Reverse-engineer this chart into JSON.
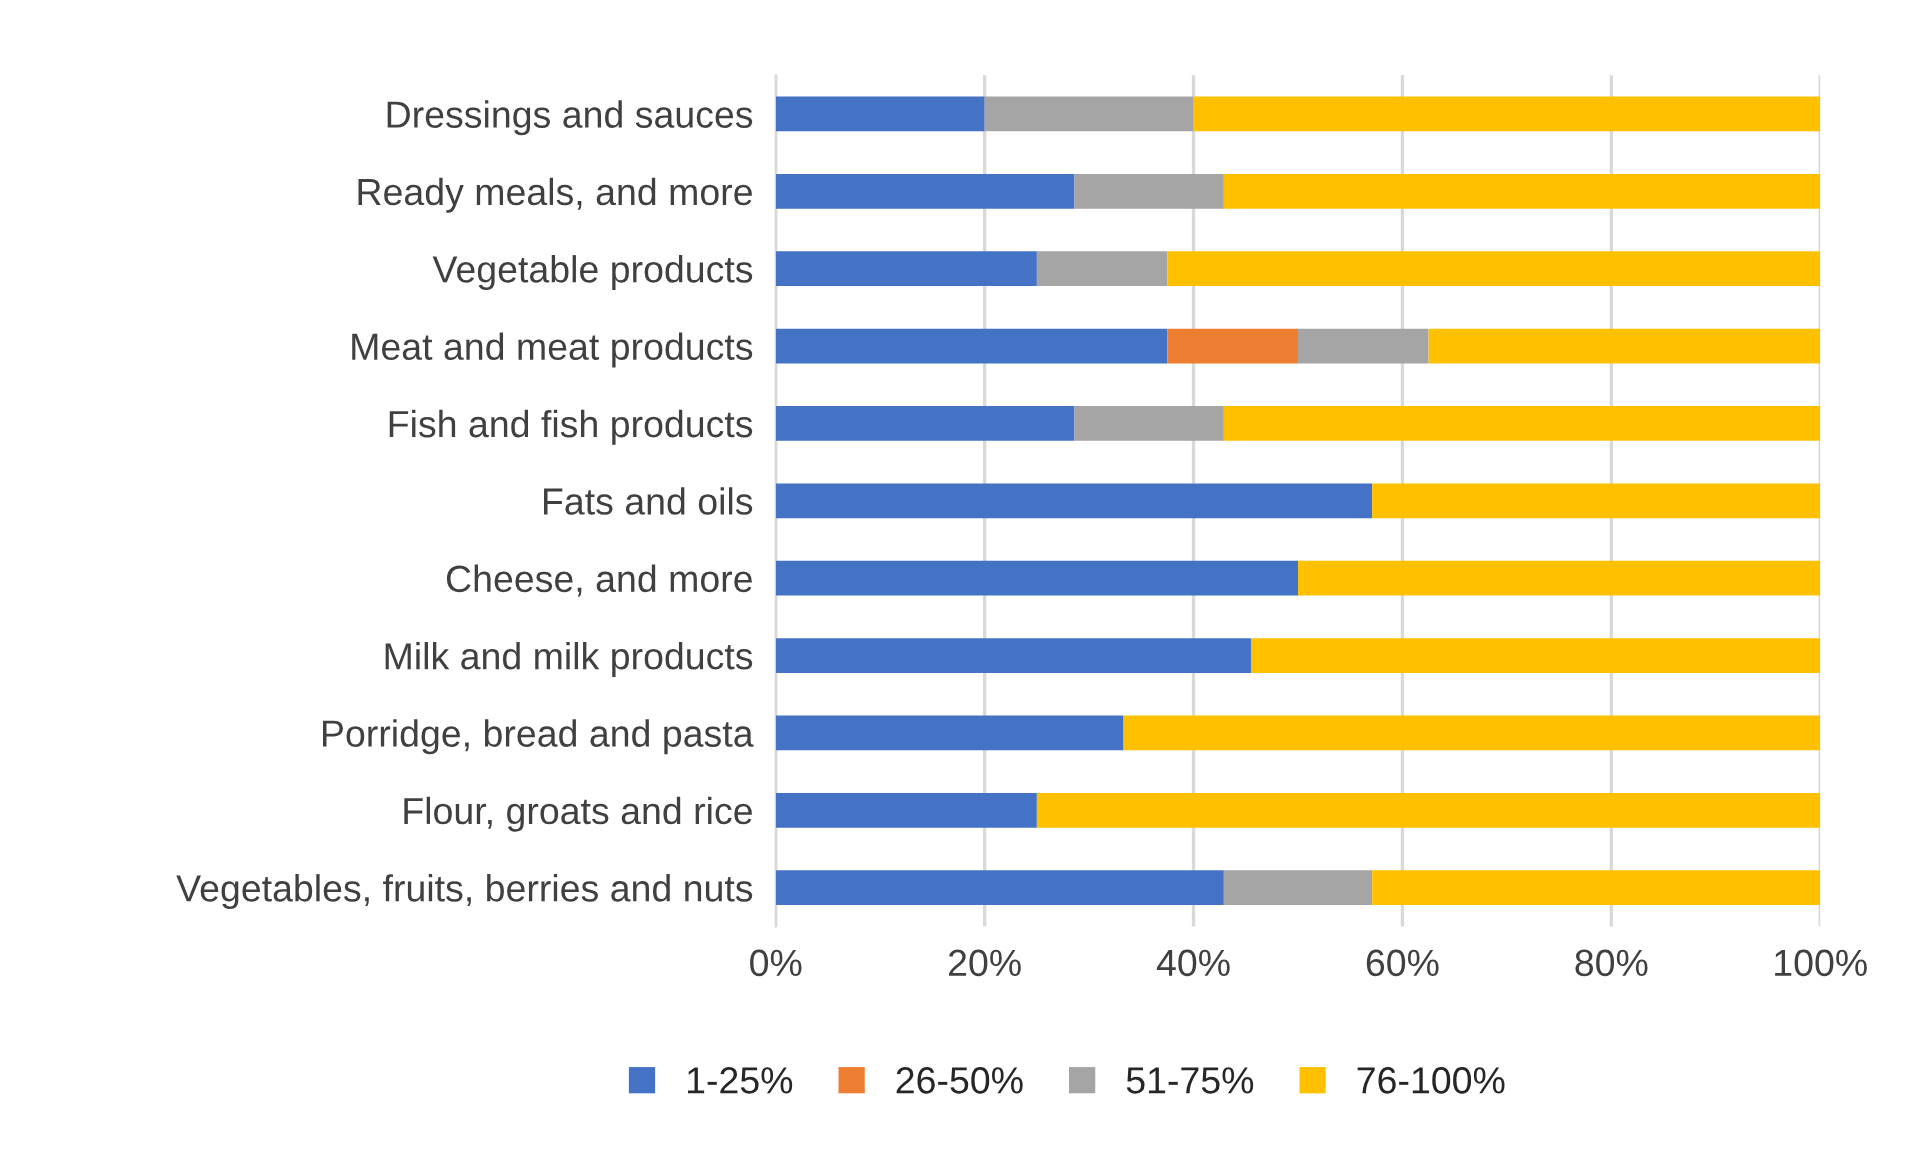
{
  "chart_data": {
    "type": "bar",
    "orientation": "horizontal",
    "stacked": true,
    "categories": [
      "Dressings and sauces",
      "Ready meals, and more",
      "Vegetable products",
      "Meat and meat products",
      "Fish and fish products",
      "Fats and oils",
      "Cheese, and more",
      "Milk and milk products",
      "Porridge, bread and pasta",
      "Flour, groats and rice",
      "Vegetables, fruits, berries and nuts"
    ],
    "series": [
      {
        "name": "1-25%",
        "color": "#4472c4",
        "values": [
          20,
          28.6,
          25,
          37.5,
          28.6,
          57.1,
          50,
          45.5,
          33.3,
          25,
          42.9
        ]
      },
      {
        "name": "26-50%",
        "color": "#ed7d31",
        "values": [
          null,
          null,
          null,
          12.5,
          null,
          null,
          null,
          null,
          null,
          null,
          null
        ]
      },
      {
        "name": "51-75%",
        "color": "#a5a5a5",
        "values": [
          20,
          14.3,
          12.5,
          12.5,
          14.3,
          null,
          null,
          null,
          null,
          null,
          14.2
        ]
      },
      {
        "name": "76-100%",
        "color": "#ffc000",
        "values": [
          60,
          57.1,
          62.5,
          37.5,
          57.1,
          42.9,
          50,
          54.5,
          66.7,
          75,
          42.9
        ]
      }
    ],
    "xlim": [
      0,
      100
    ],
    "xticks": [
      {
        "value": 0,
        "label": "0%"
      },
      {
        "value": 20,
        "label": "20%"
      },
      {
        "value": 40,
        "label": "40%"
      },
      {
        "value": 60,
        "label": "60%"
      },
      {
        "value": 80,
        "label": "80%"
      },
      {
        "value": 100,
        "label": "100%"
      }
    ],
    "grid": "x",
    "legend": "bottom"
  }
}
